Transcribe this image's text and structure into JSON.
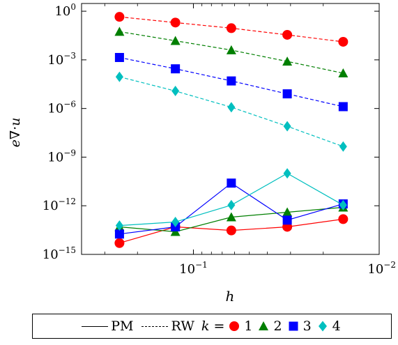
{
  "chart_data": {
    "type": "line",
    "xscale": "log",
    "yscale": "log",
    "x_reversed": true,
    "xlim": [
      0.4,
      0.01
    ],
    "ylim": [
      1e-15,
      3
    ],
    "xlabel": "h",
    "ylabel": "e∇·u",
    "xticks": [
      {
        "value": 0.1,
        "mantissa": "10",
        "exponent": "−1"
      },
      {
        "value": 0.01,
        "mantissa": "10",
        "exponent": "−2"
      }
    ],
    "yticks": [
      {
        "value": 1,
        "mantissa": "10",
        "exponent": "0"
      },
      {
        "value": 0.001,
        "mantissa": "10",
        "exponent": "−3"
      },
      {
        "value": 1e-06,
        "mantissa": "10",
        "exponent": "−6"
      },
      {
        "value": 1e-09,
        "mantissa": "10",
        "exponent": "−9"
      },
      {
        "value": 1e-12,
        "mantissa": "10",
        "exponent": "−12"
      },
      {
        "value": 1e-15,
        "mantissa": "10",
        "exponent": "−15"
      }
    ],
    "x": [
      0.25,
      0.125,
      0.0625,
      0.03125,
      0.015625
    ],
    "series": [
      {
        "method": "RW",
        "k": "1",
        "color": "#ff0000",
        "marker": "circle",
        "values": [
          0.45,
          0.2,
          0.09,
          0.035,
          0.013
        ]
      },
      {
        "method": "RW",
        "k": "2",
        "color": "#007f00",
        "marker": "triangle",
        "values": [
          0.055,
          0.015,
          0.004,
          0.0008,
          0.00015
        ]
      },
      {
        "method": "RW",
        "k": "3",
        "color": "#0000ff",
        "marker": "square",
        "values": [
          0.0014,
          0.00028,
          5e-05,
          8e-06,
          1.3e-06
        ]
      },
      {
        "method": "RW",
        "k": "4",
        "color": "#00bfbf",
        "marker": "diamond",
        "values": [
          9e-05,
          1.2e-05,
          1.2e-06,
          8e-08,
          4.5e-09
        ]
      },
      {
        "method": "PM",
        "k": "1",
        "color": "#ff0000",
        "marker": "circle",
        "values": [
          5e-15,
          5e-14,
          3e-14,
          5e-14,
          1.5e-13
        ]
      },
      {
        "method": "PM",
        "k": "2",
        "color": "#007f00",
        "marker": "triangle",
        "values": [
          5e-14,
          2.5e-14,
          2e-13,
          4e-13,
          8e-13
        ]
      },
      {
        "method": "PM",
        "k": "3",
        "color": "#0000ff",
        "marker": "square",
        "values": [
          1.8e-14,
          5e-14,
          2.5e-11,
          1.3e-13,
          1.3e-12
        ]
      },
      {
        "method": "PM",
        "k": "4",
        "color": "#00bfbf",
        "marker": "diamond",
        "values": [
          6e-14,
          1e-13,
          1.1e-12,
          1e-10,
          1.1e-12
        ]
      }
    ],
    "legend": {
      "placement": "bottom",
      "solid_label": "PM",
      "dashed_label": "RW",
      "k_label": "k =",
      "k_values": [
        "1",
        "2",
        "3",
        "4"
      ]
    }
  }
}
